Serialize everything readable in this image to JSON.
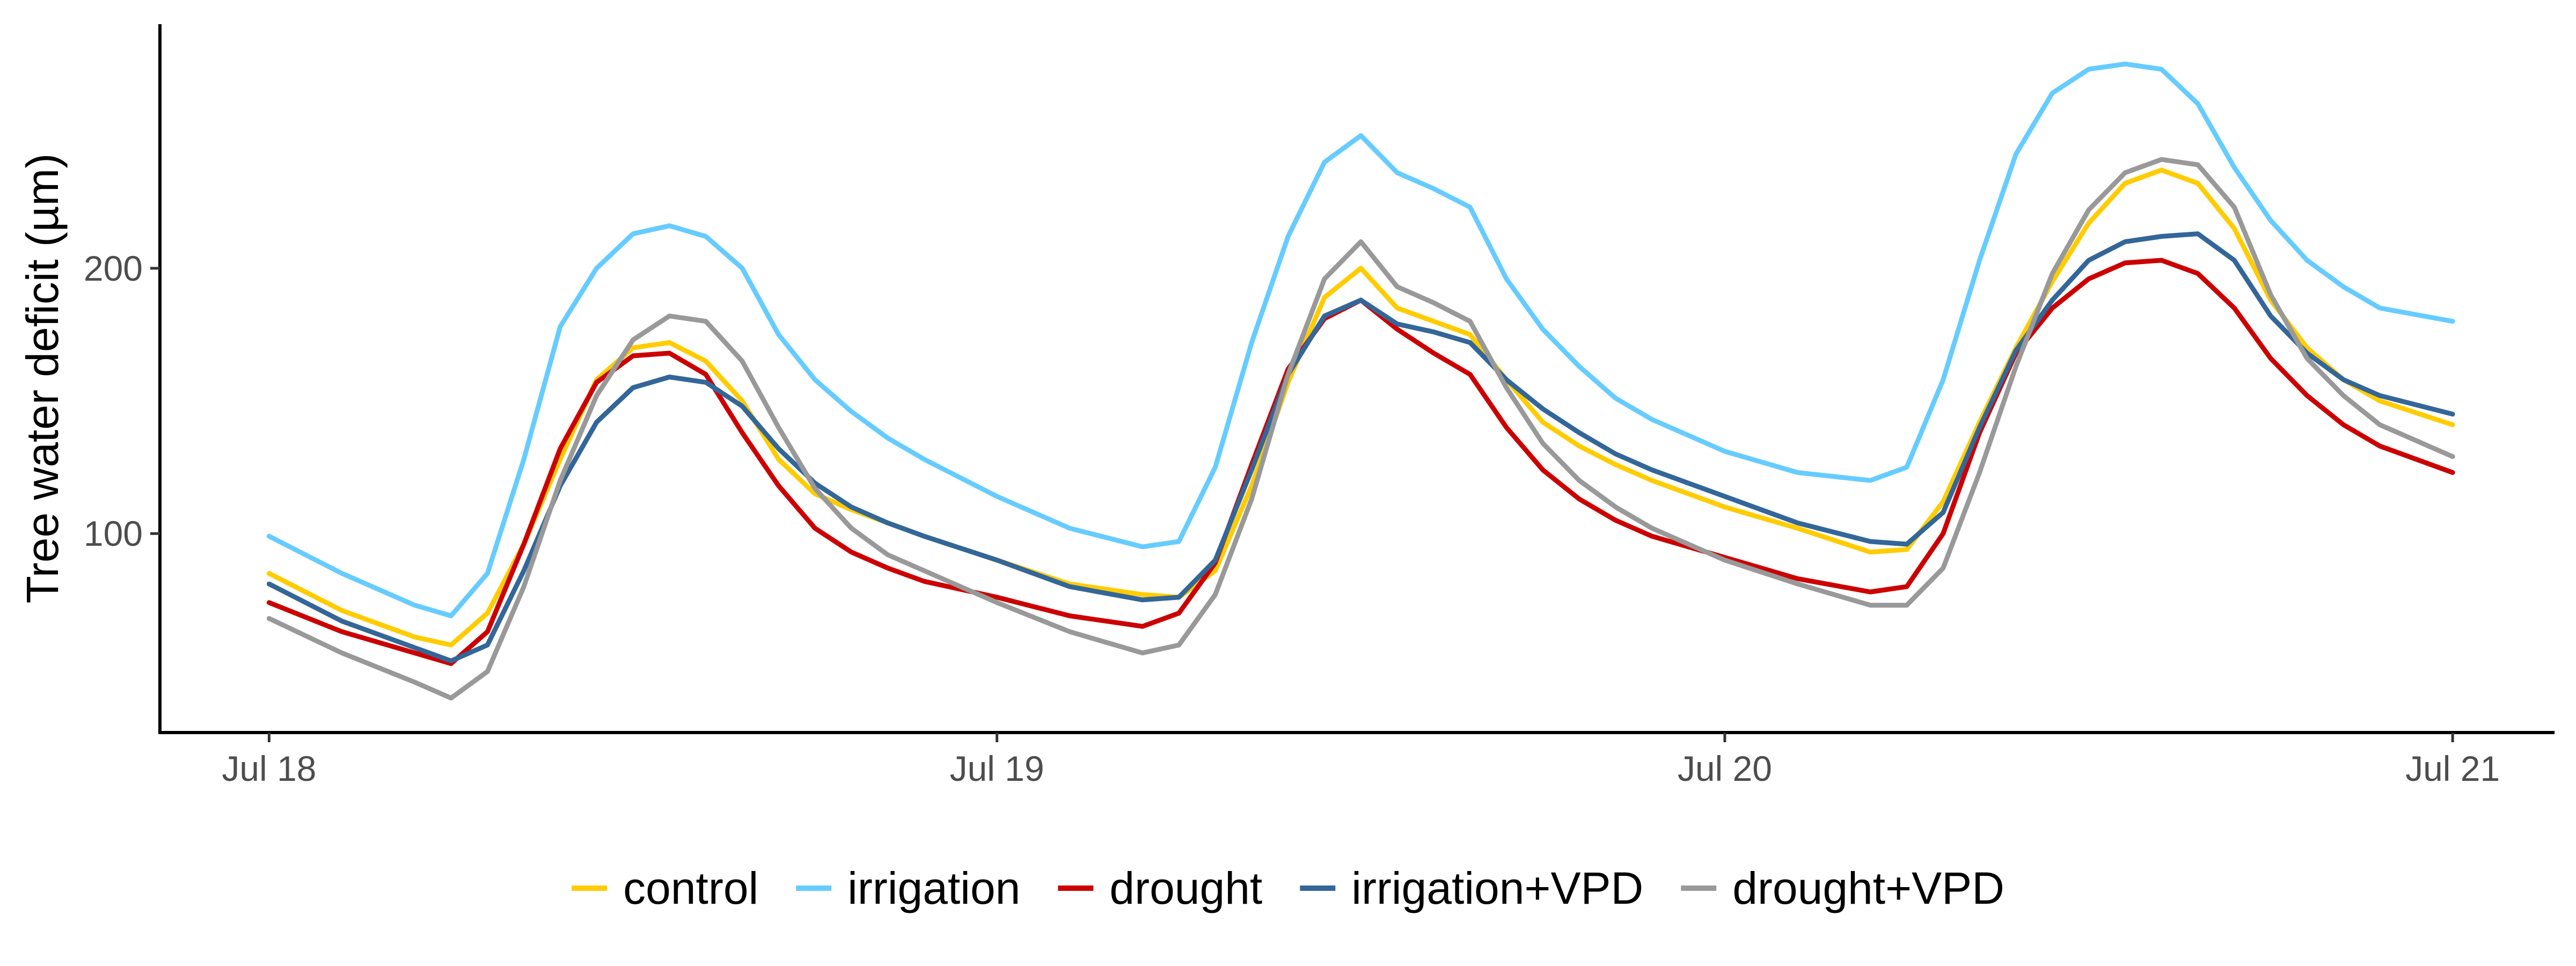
{
  "chart_data": {
    "type": "line",
    "title": "",
    "xlabel": "",
    "ylabel": "Tree water deficit (µm)",
    "x_ticks": [
      "Jul 18",
      "Jul 19",
      "Jul 20",
      "Jul 21"
    ],
    "y_ticks": [
      100,
      200
    ],
    "xlim_days": [
      -0.15,
      3.14
    ],
    "ylim": [
      25,
      292
    ],
    "grid": false,
    "legend_position": "bottom",
    "x_days": [
      0,
      0.1,
      0.2,
      0.25,
      0.3,
      0.35,
      0.4,
      0.45,
      0.5,
      0.55,
      0.6,
      0.65,
      0.7,
      0.75,
      0.8,
      0.85,
      0.9,
      1.0,
      1.1,
      1.2,
      1.25,
      1.3,
      1.35,
      1.4,
      1.45,
      1.5,
      1.55,
      1.6,
      1.65,
      1.7,
      1.75,
      1.8,
      1.85,
      1.9,
      2.0,
      2.1,
      2.2,
      2.25,
      2.3,
      2.35,
      2.4,
      2.45,
      2.5,
      2.55,
      2.6,
      2.65,
      2.7,
      2.75,
      2.8,
      2.85,
      2.9,
      3.0
    ],
    "series": [
      {
        "name": "control",
        "color": "#FFCC00",
        "values": [
          85,
          71,
          61,
          58,
          70,
          96,
          128,
          158,
          170,
          172,
          165,
          150,
          128,
          115,
          109,
          104,
          99,
          90,
          81,
          77,
          76,
          86,
          118,
          157,
          189,
          200,
          185,
          180,
          175,
          158,
          142,
          133,
          126,
          120,
          110,
          102,
          93,
          94,
          112,
          142,
          170,
          195,
          217,
          232,
          237,
          232,
          215,
          188,
          170,
          158,
          150,
          141
        ]
      },
      {
        "name": "irrigation",
        "color": "#66CCFF",
        "values": [
          99,
          85,
          73,
          69,
          85,
          128,
          178,
          200,
          213,
          216,
          212,
          200,
          175,
          158,
          146,
          136,
          128,
          114,
          102,
          95,
          97,
          125,
          172,
          212,
          240,
          250,
          236,
          230,
          223,
          196,
          177,
          163,
          151,
          143,
          131,
          123,
          120,
          125,
          158,
          203,
          243,
          266,
          275,
          277,
          275,
          262,
          238,
          218,
          203,
          193,
          185,
          180
        ]
      },
      {
        "name": "drought",
        "color": "#CC0000",
        "values": [
          74,
          63,
          55,
          51,
          63,
          96,
          132,
          157,
          167,
          168,
          160,
          138,
          118,
          102,
          93,
          87,
          82,
          76,
          69,
          65,
          70,
          89,
          126,
          162,
          181,
          188,
          177,
          168,
          160,
          140,
          124,
          113,
          105,
          99,
          91,
          83,
          78,
          80,
          100,
          138,
          168,
          185,
          196,
          202,
          203,
          198,
          185,
          166,
          152,
          141,
          133,
          123
        ]
      },
      {
        "name": "irrigation+VPD",
        "color": "#336699",
        "values": [
          81,
          67,
          57,
          52,
          58,
          86,
          118,
          142,
          155,
          159,
          157,
          148,
          132,
          119,
          110,
          104,
          99,
          90,
          80,
          75,
          76,
          90,
          124,
          160,
          182,
          188,
          179,
          176,
          172,
          158,
          147,
          138,
          130,
          124,
          114,
          104,
          97,
          96,
          108,
          140,
          169,
          188,
          203,
          210,
          212,
          213,
          203,
          182,
          168,
          158,
          152,
          145
        ]
      },
      {
        "name": "drought+VPD",
        "color": "#999999",
        "values": [
          68,
          55,
          44,
          38,
          48,
          80,
          120,
          152,
          173,
          182,
          180,
          165,
          140,
          117,
          102,
          92,
          86,
          74,
          63,
          55,
          58,
          77,
          113,
          160,
          196,
          210,
          193,
          187,
          180,
          155,
          134,
          120,
          110,
          102,
          90,
          81,
          73,
          73,
          87,
          123,
          163,
          198,
          222,
          236,
          241,
          239,
          223,
          190,
          166,
          152,
          141,
          129
        ]
      }
    ]
  }
}
